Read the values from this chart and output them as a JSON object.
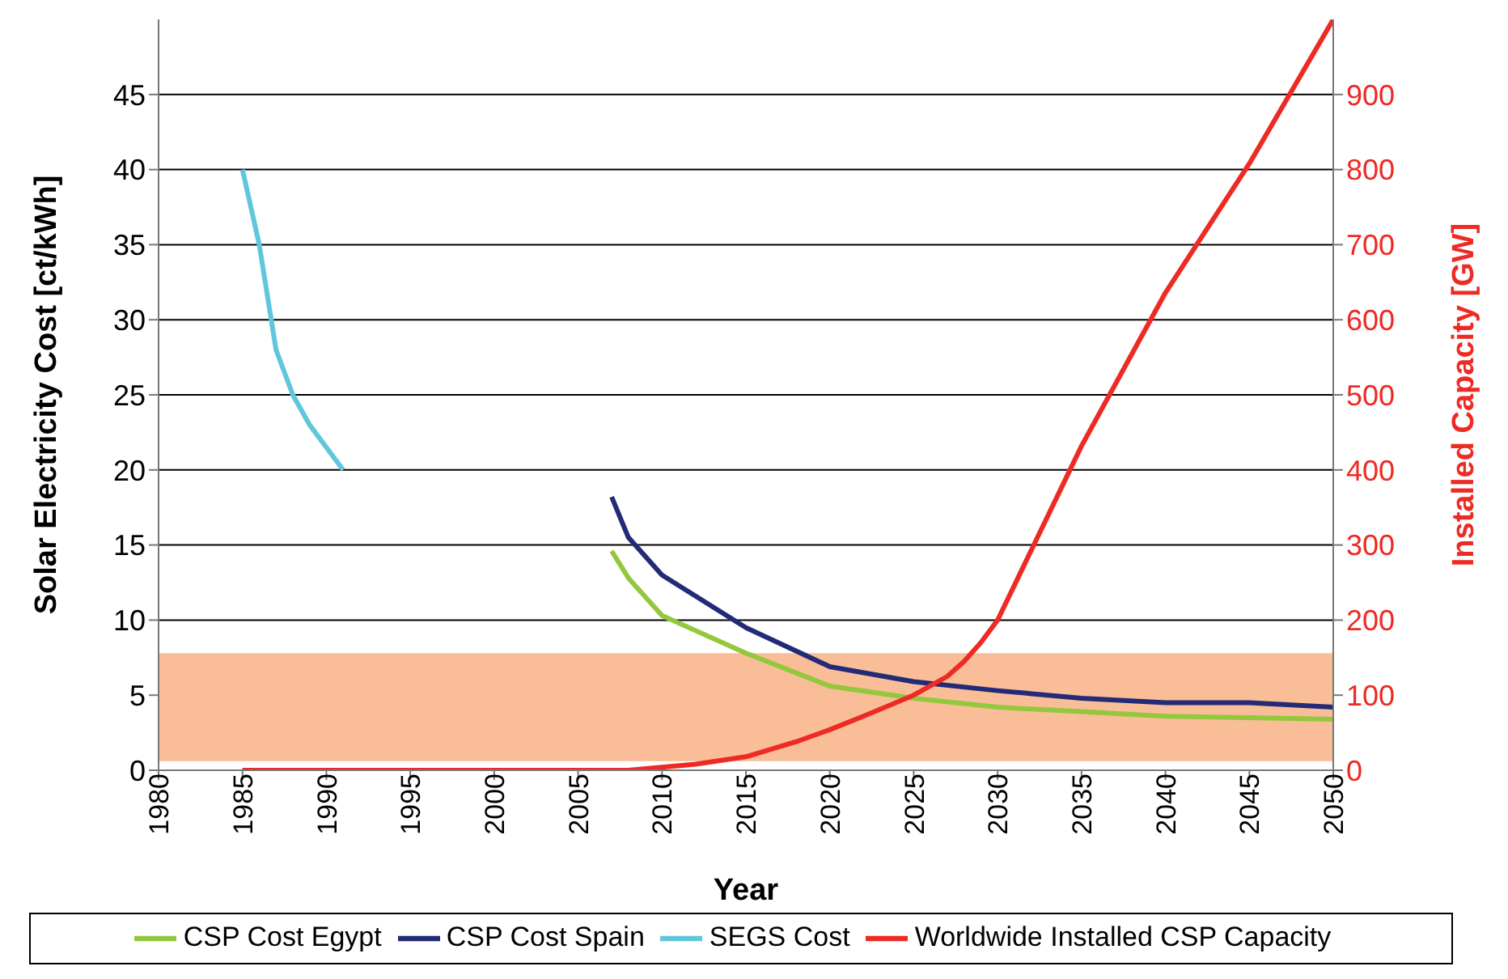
{
  "chart_data": {
    "type": "line",
    "xlabel": "Year",
    "ylabel": "Solar Electricity Cost [ct/kWh]",
    "y2label": "Installed Capacity [GW]",
    "xlim": [
      1980,
      2050
    ],
    "xticks": [
      1980,
      1985,
      1990,
      1995,
      2000,
      2005,
      2010,
      2015,
      2020,
      2025,
      2030,
      2035,
      2040,
      2045,
      2050
    ],
    "ylim": [
      0,
      50
    ],
    "yticks": [
      0,
      5,
      10,
      15,
      20,
      25,
      30,
      35,
      40,
      45
    ],
    "y2lim": [
      0,
      1000
    ],
    "y2ticks": [
      0,
      100,
      200,
      300,
      400,
      500,
      600,
      700,
      800,
      900
    ],
    "grid": "y",
    "legend": "bottom",
    "marker": "none",
    "line_style": "solid",
    "bands": [
      {
        "axis": "y",
        "from": 0.6,
        "to": 7.8,
        "color": "#f9bd97"
      }
    ],
    "series": [
      {
        "name": "SEGS Cost",
        "color": "#5fc6dc",
        "x": [
          1985,
          1986,
          1987,
          1988,
          1989,
          1990,
          1991
        ],
        "values": [
          40,
          35,
          28,
          25,
          23,
          21.5,
          20
        ]
      },
      {
        "name": "CSP Cost Spain",
        "color": "#232a77",
        "x": [
          2007,
          2008,
          2010,
          2015,
          2020,
          2025,
          2030,
          2035,
          2040,
          2045,
          2050
        ],
        "values": [
          18.2,
          15.5,
          13,
          9.5,
          6.9,
          5.9,
          5.3,
          4.8,
          4.5,
          4.5,
          4.2
        ]
      },
      {
        "name": "CSP Cost Egypt",
        "color": "#93c83e",
        "x": [
          2007,
          2008,
          2010,
          2015,
          2020,
          2025,
          2030,
          2035,
          2040,
          2045,
          2050
        ],
        "values": [
          14.6,
          12.8,
          10.3,
          7.8,
          5.6,
          4.8,
          4.2,
          3.9,
          3.6,
          3.5,
          3.4
        ]
      },
      {
        "name": "Worldwide Installed CSP Capacity",
        "color": "#ee2a24",
        "axis": "y2",
        "x": [
          1985,
          1990,
          2000,
          2008,
          2010,
          2012,
          2015,
          2018,
          2020,
          2022,
          2025,
          2027,
          2028,
          2029,
          2030,
          2035,
          2040,
          2045,
          2050
        ],
        "values": [
          0,
          0,
          0,
          0,
          4,
          8,
          18,
          38,
          54,
          72,
          100,
          125,
          145,
          170,
          200,
          432,
          636,
          808,
          1000
        ]
      }
    ]
  }
}
